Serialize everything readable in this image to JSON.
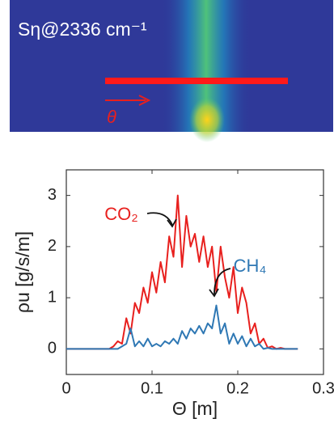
{
  "image_panel": {
    "label": "Sη@2336 cm⁻¹",
    "arrow_label": "θ"
  },
  "chart_data": {
    "type": "line",
    "xlabel": "Θ [m]",
    "ylabel": "ρu [g/s/m]",
    "x": [
      0,
      0.005,
      0.01,
      0.015,
      0.02,
      0.025,
      0.03,
      0.035,
      0.04,
      0.045,
      0.05,
      0.055,
      0.06,
      0.065,
      0.07,
      0.075,
      0.08,
      0.085,
      0.09,
      0.095,
      0.1,
      0.105,
      0.11,
      0.115,
      0.12,
      0.125,
      0.13,
      0.135,
      0.14,
      0.145,
      0.15,
      0.155,
      0.16,
      0.165,
      0.17,
      0.175,
      0.18,
      0.185,
      0.19,
      0.195,
      0.2,
      0.205,
      0.21,
      0.215,
      0.22,
      0.225,
      0.23,
      0.235,
      0.24,
      0.245,
      0.25,
      0.255,
      0.26,
      0.265,
      0.27
    ],
    "series": [
      {
        "name": "CO₂",
        "color": "#e8201e",
        "values": [
          0,
          0,
          0,
          0,
          0,
          0,
          0,
          0,
          0,
          0,
          0,
          0.05,
          0.15,
          0.1,
          0.6,
          0.3,
          0.9,
          0.7,
          1.2,
          0.9,
          1.5,
          1.1,
          1.7,
          1.3,
          2.2,
          1.8,
          3.0,
          1.6,
          2.6,
          2.0,
          2.25,
          1.7,
          2.2,
          1.6,
          2.0,
          1.1,
          2.0,
          1.4,
          1.0,
          1.6,
          0.7,
          1.2,
          0.9,
          0.3,
          0.5,
          0.1,
          0.2,
          0.02,
          0.05,
          0,
          0.02,
          0,
          0,
          0,
          0
        ]
      },
      {
        "name": "CH₄",
        "color": "#2f78b4",
        "values": [
          0,
          0,
          0,
          0,
          0,
          0,
          0,
          0,
          0,
          0,
          0,
          0,
          0,
          0.05,
          0.1,
          0.4,
          0.05,
          0.15,
          0.05,
          0.2,
          0.05,
          0.1,
          0.05,
          0.15,
          0.1,
          0.2,
          0.1,
          0.35,
          0.2,
          0.4,
          0.3,
          0.45,
          0.3,
          0.5,
          0.4,
          0.85,
          0.3,
          0.5,
          0.1,
          0.3,
          0.1,
          0.25,
          0.05,
          0.2,
          0.05,
          0.1,
          0,
          0.02,
          0,
          0,
          0,
          0,
          0,
          0,
          0
        ]
      }
    ],
    "xlim": [
      0,
      0.3
    ],
    "xticks": [
      0,
      0.1,
      0.2,
      0.3
    ],
    "ylim": [
      -0.5,
      3.5
    ],
    "yticks": [
      0,
      1,
      2,
      3
    ],
    "grid": false
  }
}
